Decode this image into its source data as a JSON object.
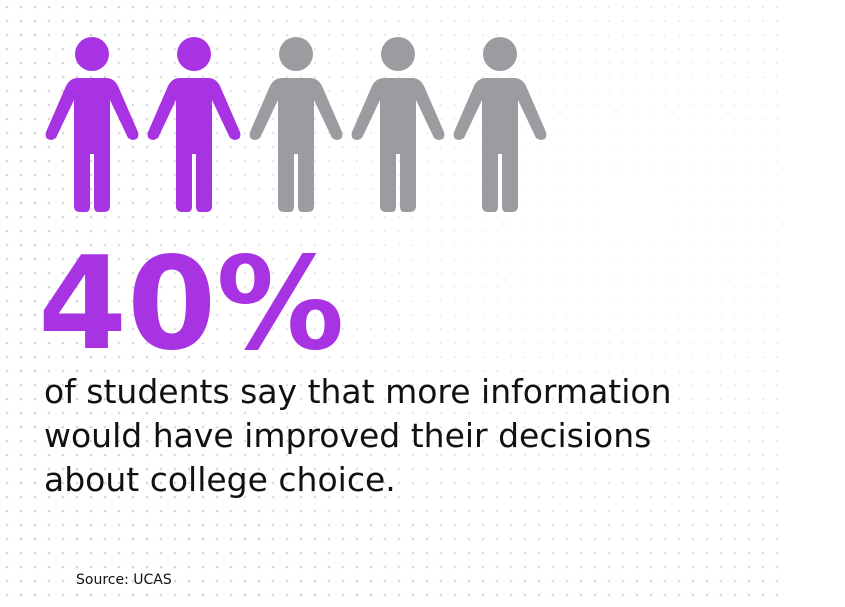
{
  "icons": {
    "filled": 2,
    "total": 5,
    "filled_color": "#a733e3",
    "empty_color": "#9c9ca0"
  },
  "headline": "40%",
  "headline_color": "#a733e3",
  "text_lines": [
    "of students say that more information",
    "would have improved their decisions",
    "about college choice."
  ],
  "source": "Source: UCAS"
}
